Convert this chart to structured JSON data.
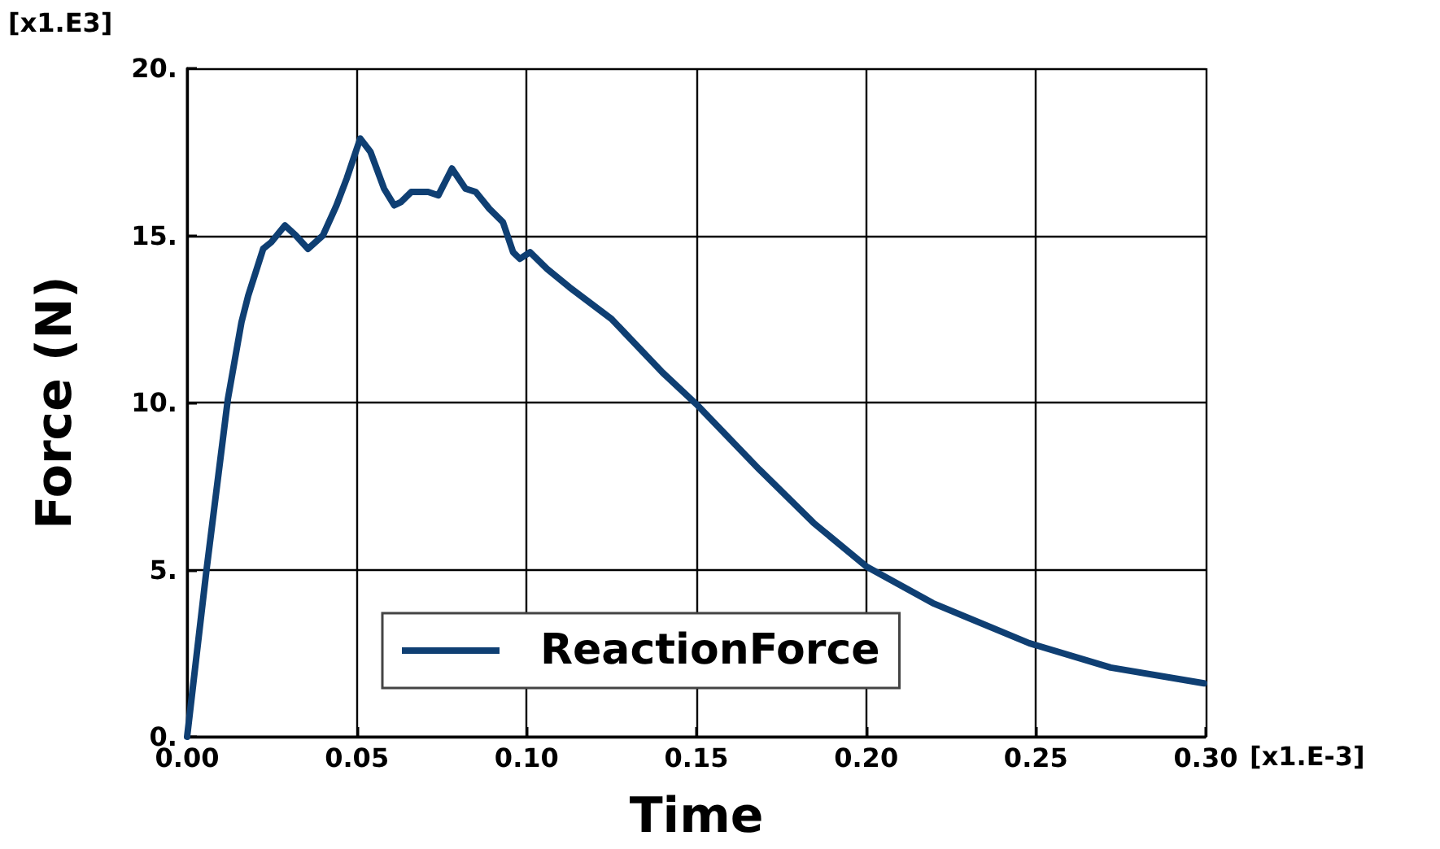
{
  "chart_data": {
    "type": "line",
    "xlabel": "Time",
    "ylabel": "Force (N)",
    "annotations": [
      "[x1.E3]",
      "[x1.E-3]"
    ],
    "xlim": [
      0,
      0.3
    ],
    "ylim": [
      0,
      20
    ],
    "xticks": [
      {
        "value": 0,
        "label": "0.00"
      },
      {
        "value": 0.05,
        "label": "0.05"
      },
      {
        "value": 0.1,
        "label": "0.10"
      },
      {
        "value": 0.15,
        "label": "0.15"
      },
      {
        "value": 0.2,
        "label": "0.20"
      },
      {
        "value": 0.25,
        "label": "0.25"
      },
      {
        "value": 0.3,
        "label": "0.30"
      }
    ],
    "yticks": [
      {
        "value": 0,
        "label": "0."
      },
      {
        "value": 5,
        "label": "5."
      },
      {
        "value": 10,
        "label": "10."
      },
      {
        "value": 15,
        "label": "15."
      },
      {
        "value": 20,
        "label": "20."
      }
    ],
    "grid": true,
    "legend": "bottom",
    "marker": "none",
    "line_style": "solid",
    "series": [
      {
        "name": "ReactionForce",
        "color": "#0f3f73",
        "x": [
          0,
          0.0056,
          0.012,
          0.016,
          0.018,
          0.0224,
          0.0248,
          0.0288,
          0.032,
          0.0356,
          0.04,
          0.044,
          0.047,
          0.051,
          0.054,
          0.058,
          0.061,
          0.063,
          0.066,
          0.071,
          0.074,
          0.078,
          0.082,
          0.085,
          0.089,
          0.093,
          0.096,
          0.098,
          0.101,
          0.106,
          0.1126,
          0.125,
          0.14,
          0.15,
          0.1685,
          0.1845,
          0.2,
          0.2196,
          0.248,
          0.272,
          0.2995
        ],
        "values": [
          0,
          4.9,
          10.1,
          12.4,
          13.2,
          14.6,
          14.8,
          15.3,
          15.0,
          14.6,
          15.0,
          15.9,
          16.7,
          17.9,
          17.5,
          16.4,
          15.9,
          16.0,
          16.3,
          16.3,
          16.2,
          17.0,
          16.4,
          16.3,
          15.8,
          15.4,
          14.5,
          14.3,
          14.5,
          14.0,
          13.45,
          12.5,
          10.9,
          9.95,
          8.0,
          6.4,
          5.1,
          4.0,
          2.8,
          2.07,
          1.6
        ]
      }
    ]
  }
}
